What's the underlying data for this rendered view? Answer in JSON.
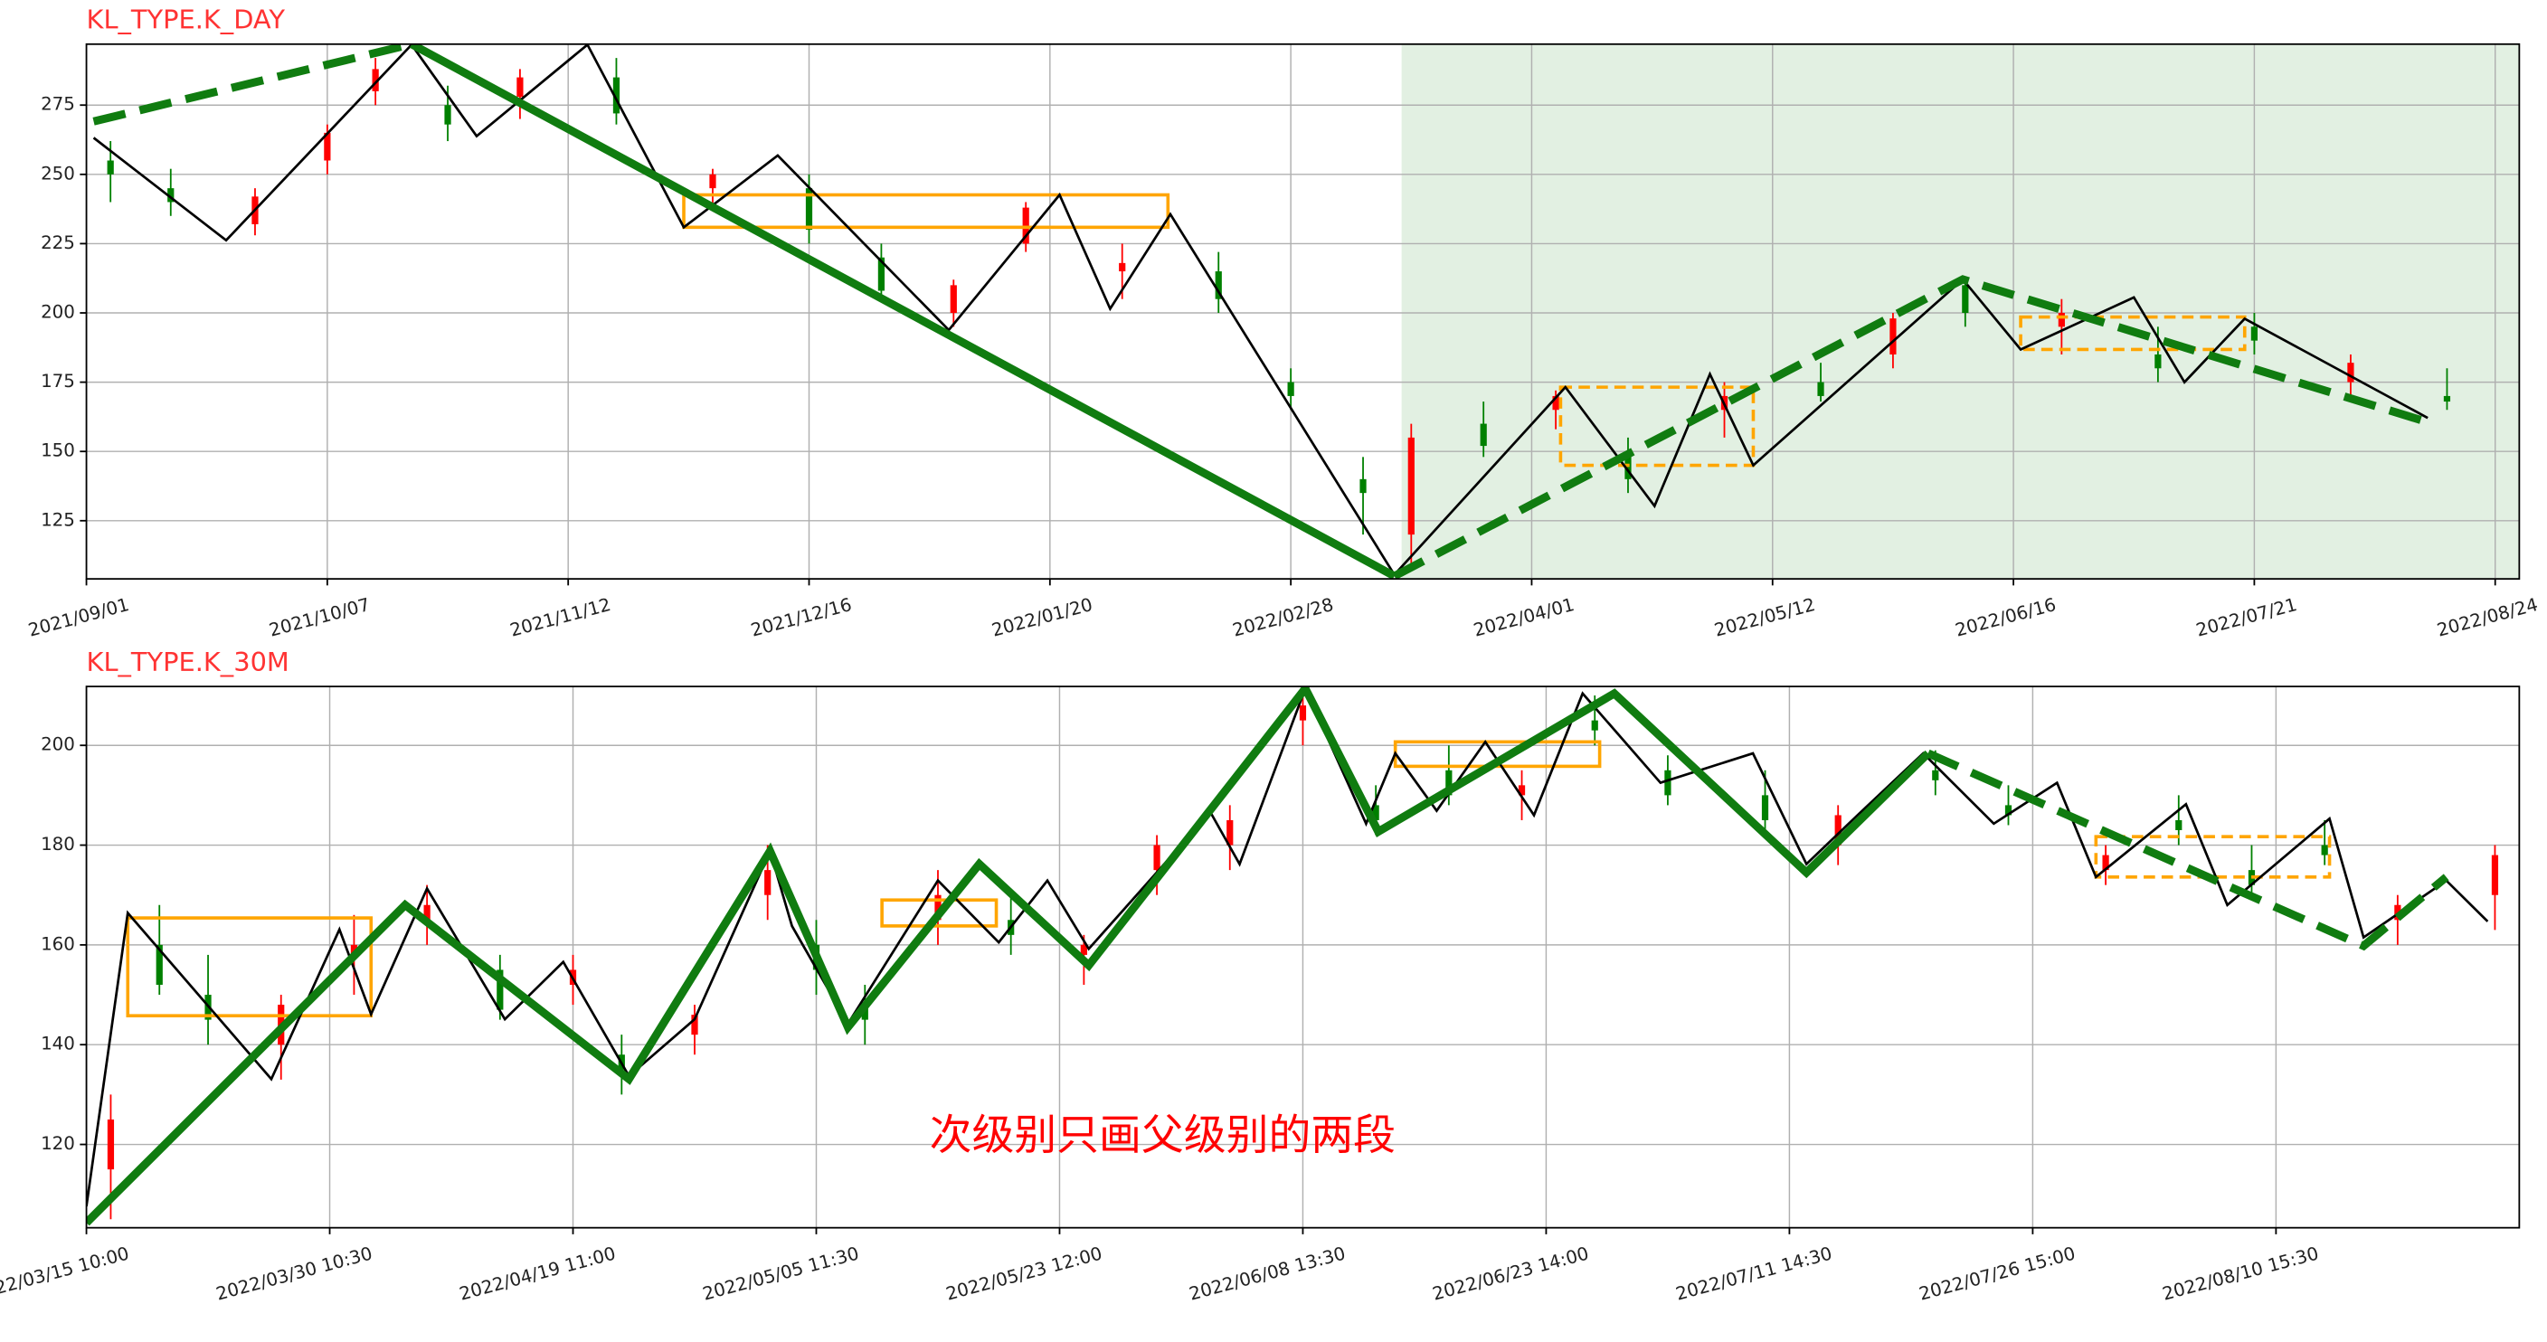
{
  "chart_data": [
    {
      "type": "candlestick",
      "title": "KL_TYPE.K_DAY",
      "xlim": [
        0,
        10.1
      ],
      "xticks": [
        {
          "value": 0,
          "label": "2021/09/01"
        },
        {
          "value": 1,
          "label": "2021/10/07"
        },
        {
          "value": 2,
          "label": "2021/11/12"
        },
        {
          "value": 3,
          "label": "2021/12/16"
        },
        {
          "value": 4,
          "label": "2022/01/20"
        },
        {
          "value": 5,
          "label": "2022/02/28"
        },
        {
          "value": 6,
          "label": "2022/04/01"
        },
        {
          "value": 7,
          "label": "2022/05/12"
        },
        {
          "value": 8,
          "label": "2022/06/16"
        },
        {
          "value": 9,
          "label": "2022/07/21"
        },
        {
          "value": 10,
          "label": "2022/08/24"
        }
      ],
      "ylim": [
        104,
        297
      ],
      "yticks": [
        125,
        150,
        175,
        200,
        225,
        250,
        275
      ],
      "grid": true,
      "highlight_xlim": [
        5.46,
        10.1
      ],
      "highlight_color": "#e2f0e2",
      "up_color": "#ff0000",
      "down_color": "#008000",
      "candles": [
        [
          0.1,
          255,
          262,
          240,
          250
        ],
        [
          0.35,
          245,
          252,
          235,
          240
        ],
        [
          0.7,
          232,
          245,
          228,
          242
        ],
        [
          1.0,
          255,
          268,
          250,
          265
        ],
        [
          1.2,
          280,
          292,
          275,
          288
        ],
        [
          1.5,
          275,
          282,
          262,
          268
        ],
        [
          1.8,
          278,
          288,
          270,
          285
        ],
        [
          2.2,
          285,
          292,
          268,
          272
        ],
        [
          2.6,
          245,
          252,
          238,
          250
        ],
        [
          3.0,
          245,
          250,
          225,
          230
        ],
        [
          3.3,
          220,
          225,
          205,
          208
        ],
        [
          3.6,
          200,
          212,
          195,
          210
        ],
        [
          3.9,
          225,
          240,
          222,
          238
        ],
        [
          4.3,
          215,
          225,
          205,
          218
        ],
        [
          4.7,
          215,
          222,
          200,
          205
        ],
        [
          5.0,
          175,
          180,
          165,
          170
        ],
        [
          5.3,
          140,
          148,
          120,
          135
        ],
        [
          5.5,
          120,
          160,
          108,
          155
        ],
        [
          5.8,
          160,
          168,
          148,
          152
        ],
        [
          6.1,
          165,
          172,
          158,
          170
        ],
        [
          6.4,
          150,
          155,
          135,
          140
        ],
        [
          6.8,
          165,
          175,
          155,
          170
        ],
        [
          7.2,
          175,
          182,
          168,
          170
        ],
        [
          7.5,
          185,
          200,
          180,
          198
        ],
        [
          7.8,
          210,
          212,
          195,
          200
        ],
        [
          8.2,
          195,
          205,
          185,
          200
        ],
        [
          8.6,
          185,
          195,
          175,
          180
        ],
        [
          9.0,
          195,
          200,
          185,
          190
        ],
        [
          9.4,
          175,
          185,
          168,
          182
        ],
        [
          9.8,
          170,
          180,
          165,
          168
        ]
      ],
      "bi": {
        "color": "#000000",
        "x": [
          0.03,
          0.58,
          1.35,
          1.62,
          2.08,
          2.48,
          2.87,
          3.58,
          4.04,
          4.25,
          4.5,
          5.43,
          6.14,
          6.51,
          6.74,
          6.92,
          7.79,
          8.03,
          8.5,
          8.71,
          8.96,
          9.72
        ],
        "y": [
          263.2,
          226.2,
          296.8,
          263.8,
          296.8,
          230.9,
          256.8,
          193.8,
          242.6,
          201.5,
          235.6,
          105.5,
          173.2,
          130.3,
          177.9,
          145.0,
          212.1,
          186.8,
          205.6,
          175.0,
          197.9,
          162.1
        ]
      },
      "segments": [
        {
          "color": "#107c10",
          "style": "dashed",
          "x": [
            0.03,
            1.35
          ],
          "y": [
            269.1,
            297
          ]
        },
        {
          "color": "#107c10",
          "style": "solid",
          "x": [
            1.35,
            5.43
          ],
          "y": [
            297,
            105
          ]
        },
        {
          "color": "#107c10",
          "style": "dashed",
          "x": [
            5.43,
            7.79,
            9.73
          ],
          "y": [
            105,
            212.1,
            160.3
          ]
        }
      ],
      "zhongshu": [
        {
          "color": "#ffa500",
          "style": "solid",
          "x": [
            2.48,
            4.49
          ],
          "y": [
            230.9,
            242.6
          ]
        },
        {
          "color": "#ffa500",
          "style": "dashed",
          "x": [
            6.12,
            6.92
          ],
          "y": [
            145.0,
            173.2
          ]
        },
        {
          "color": "#ffa500",
          "style": "dashed",
          "x": [
            8.03,
            8.96
          ],
          "y": [
            186.8,
            198.5
          ]
        }
      ]
    },
    {
      "type": "candlestick",
      "title": "KL_TYPE.K_30M",
      "xlim": [
        0,
        10.0
      ],
      "xticks": [
        {
          "value": 0,
          "label": "2022/03/15 10:00"
        },
        {
          "value": 1,
          "label": "2022/03/30 10:30"
        },
        {
          "value": 2,
          "label": "2022/04/19 11:00"
        },
        {
          "value": 3,
          "label": "2022/05/05 11:30"
        },
        {
          "value": 4,
          "label": "2022/05/23 12:00"
        },
        {
          "value": 5,
          "label": "2022/06/08 13:30"
        },
        {
          "value": 6,
          "label": "2022/06/23 14:00"
        },
        {
          "value": 7,
          "label": "2022/07/11 14:30"
        },
        {
          "value": 8,
          "label": "2022/07/26 15:00"
        },
        {
          "value": 9,
          "label": "2022/08/10 15:30"
        }
      ],
      "ylim": [
        103.3,
        211.8
      ],
      "yticks": [
        120,
        140,
        160,
        180,
        200
      ],
      "grid": true,
      "up_color": "#ff0000",
      "down_color": "#008000",
      "candles": [
        [
          0.1,
          115,
          130,
          105,
          125
        ],
        [
          0.3,
          160,
          168,
          150,
          152
        ],
        [
          0.5,
          150,
          158,
          140,
          145
        ],
        [
          0.8,
          140,
          150,
          133,
          148
        ],
        [
          1.1,
          158,
          166,
          150,
          160
        ],
        [
          1.4,
          165,
          172,
          160,
          168
        ],
        [
          1.7,
          155,
          158,
          145,
          147
        ],
        [
          2.0,
          152,
          158,
          148,
          155
        ],
        [
          2.2,
          138,
          142,
          130,
          135
        ],
        [
          2.5,
          142,
          148,
          138,
          146
        ],
        [
          2.8,
          170,
          180,
          165,
          175
        ],
        [
          3.0,
          160,
          165,
          150,
          155
        ],
        [
          3.2,
          148,
          152,
          140,
          145
        ],
        [
          3.5,
          165,
          175,
          160,
          170
        ],
        [
          3.8,
          165,
          170,
          158,
          162
        ],
        [
          4.1,
          158,
          162,
          152,
          160
        ],
        [
          4.4,
          175,
          182,
          170,
          180
        ],
        [
          4.7,
          180,
          188,
          175,
          185
        ],
        [
          5.0,
          205,
          211,
          200,
          208
        ],
        [
          5.3,
          188,
          192,
          182,
          185
        ],
        [
          5.6,
          195,
          200,
          188,
          190
        ],
        [
          5.9,
          190,
          195,
          185,
          192
        ],
        [
          6.2,
          205,
          210,
          200,
          203
        ],
        [
          6.5,
          195,
          198,
          188,
          190
        ],
        [
          6.9,
          190,
          195,
          182,
          185
        ],
        [
          7.2,
          180,
          188,
          176,
          186
        ],
        [
          7.6,
          195,
          199,
          190,
          193
        ],
        [
          7.9,
          188,
          192,
          184,
          186
        ],
        [
          8.3,
          175,
          180,
          172,
          178
        ],
        [
          8.6,
          185,
          190,
          180,
          183
        ],
        [
          8.9,
          175,
          180,
          170,
          172
        ],
        [
          9.2,
          180,
          185,
          176,
          178
        ],
        [
          9.5,
          165,
          170,
          160,
          168
        ],
        [
          9.9,
          170,
          180,
          163,
          178
        ]
      ],
      "bi": {
        "color": "#000000",
        "x": [
          0,
          0.17,
          0.76,
          1.04,
          1.17,
          1.4,
          1.72,
          1.96,
          2.23,
          2.5,
          2.81,
          2.9,
          3.13,
          3.5,
          3.75,
          3.95,
          4.12,
          4.62,
          4.74,
          5.01,
          5.26,
          5.38,
          5.55,
          5.75,
          5.95,
          6.15,
          6.47,
          6.85,
          7.07,
          7.28,
          7.55,
          7.84,
          8.1,
          8.26,
          8.63,
          8.8,
          9.22,
          9.36,
          9.7,
          9.87
        ],
        "y": [
          107.6,
          166.4,
          133.1,
          163.1,
          146.1,
          171.3,
          145.1,
          156.6,
          133.7,
          145.1,
          178.8,
          163.8,
          144.2,
          172.9,
          160.5,
          172.9,
          159.2,
          186.6,
          176.2,
          211.4,
          184.3,
          198.4,
          186.9,
          200.7,
          186.0,
          210.4,
          192.5,
          198.4,
          176.2,
          186.0,
          198.4,
          184.3,
          192.5,
          173.6,
          188.2,
          168.0,
          185.3,
          161.5,
          172.9,
          164.7
        ]
      },
      "segments": [
        {
          "color": "#107c10",
          "style": "solid",
          "x": [
            0,
            1.31,
            2.23,
            2.81,
            3.13,
            3.67,
            4.12,
            5.01,
            5.31,
            6.28,
            7.07,
            7.57
          ],
          "y": [
            104.3,
            168.0,
            133.1,
            178.8,
            143.5,
            176.2,
            155.9,
            211.4,
            182.7,
            210.4,
            174.5,
            198.4
          ]
        },
        {
          "color": "#107c10",
          "style": "dashed",
          "x": [
            7.57,
            9.36,
            9.7
          ],
          "y": [
            198.4,
            159.8,
            173.6
          ]
        }
      ],
      "zhongshu": [
        {
          "color": "#ffa500",
          "style": "solid",
          "x": [
            0.17,
            1.17
          ],
          "y": [
            145.8,
            165.4
          ]
        },
        {
          "color": "#ffa500",
          "style": "solid",
          "x": [
            3.27,
            3.74
          ],
          "y": [
            163.8,
            169.0
          ]
        },
        {
          "color": "#ffa500",
          "style": "solid",
          "x": [
            5.38,
            6.22
          ],
          "y": [
            195.8,
            200.7
          ]
        },
        {
          "color": "#ffa500",
          "style": "dashed",
          "x": [
            8.26,
            9.22
          ],
          "y": [
            173.6,
            181.7
          ]
        }
      ],
      "annotation": "次级别只画父级别的两段",
      "annotation_color": "#ff0000"
    }
  ]
}
